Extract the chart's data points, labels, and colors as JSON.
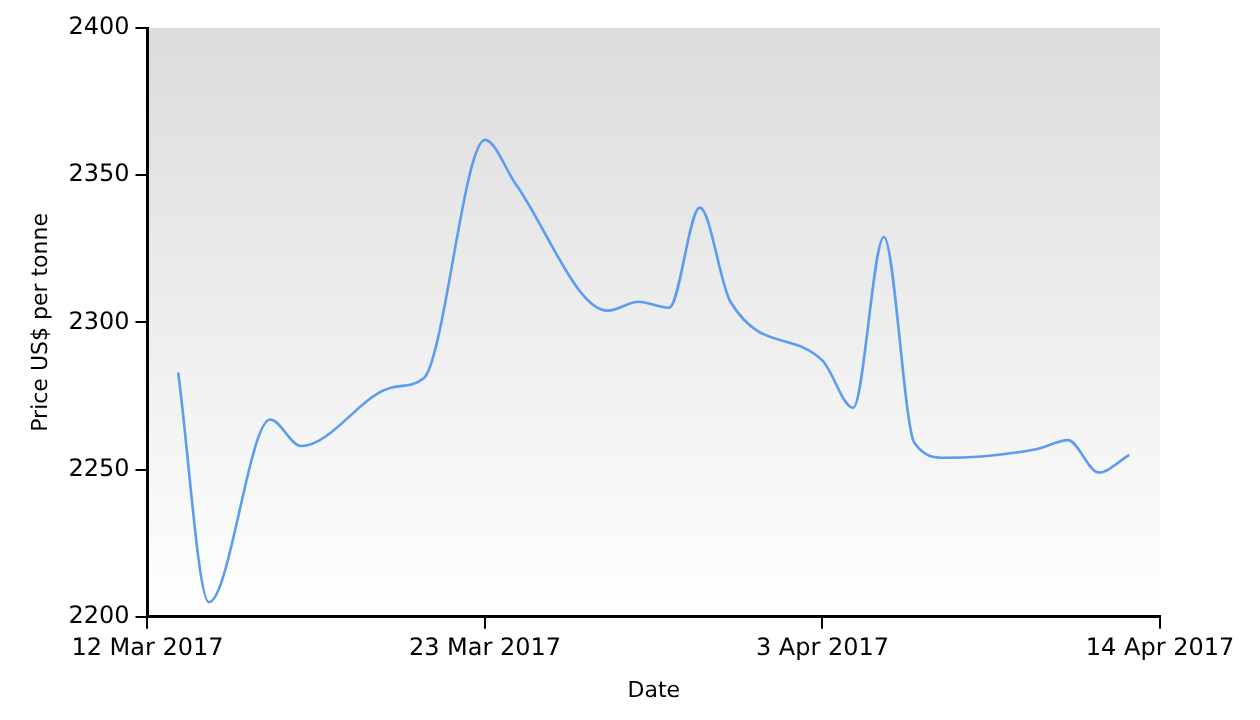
{
  "chart_data": {
    "type": "line",
    "xlabel": "Date",
    "ylabel": "Price US$ per tonne",
    "x": [
      "2017-03-13",
      "2017-03-14",
      "2017-03-16",
      "2017-03-17",
      "2017-03-20",
      "2017-03-21",
      "2017-03-23",
      "2017-03-24",
      "2017-03-27",
      "2017-03-28",
      "2017-03-29",
      "2017-03-30",
      "2017-03-31",
      "2017-04-03",
      "2017-04-04",
      "2017-04-05",
      "2017-04-06",
      "2017-04-07",
      "2017-04-10",
      "2017-04-11",
      "2017-04-12",
      "2017-04-13"
    ],
    "series": [
      {
        "color": "#5b9bf0",
        "values": [
          2283,
          2205,
          2267,
          2258,
          2278,
          2281,
          2362,
          2347,
          2304,
          2307,
          2305,
          2339,
          2307,
          2287,
          2271,
          2329,
          2259,
          2254,
          2257,
          2260,
          2249,
          2255
        ]
      }
    ],
    "xlim": [
      "2017-03-12",
      "2017-04-14"
    ],
    "xticks": [
      {
        "value": "2017-03-12",
        "label": "12 Mar 2017"
      },
      {
        "value": "2017-03-23",
        "label": "23 Mar 2017"
      },
      {
        "value": "2017-04-03",
        "label": "3 Apr 2017"
      },
      {
        "value": "2017-04-14",
        "label": "14 Apr 2017"
      }
    ],
    "ylim": [
      2200,
      2400
    ],
    "yticks": [
      2200,
      2250,
      2300,
      2350,
      2400
    ],
    "grid": false,
    "legend": false,
    "marker": "none",
    "line_style": "solid"
  }
}
